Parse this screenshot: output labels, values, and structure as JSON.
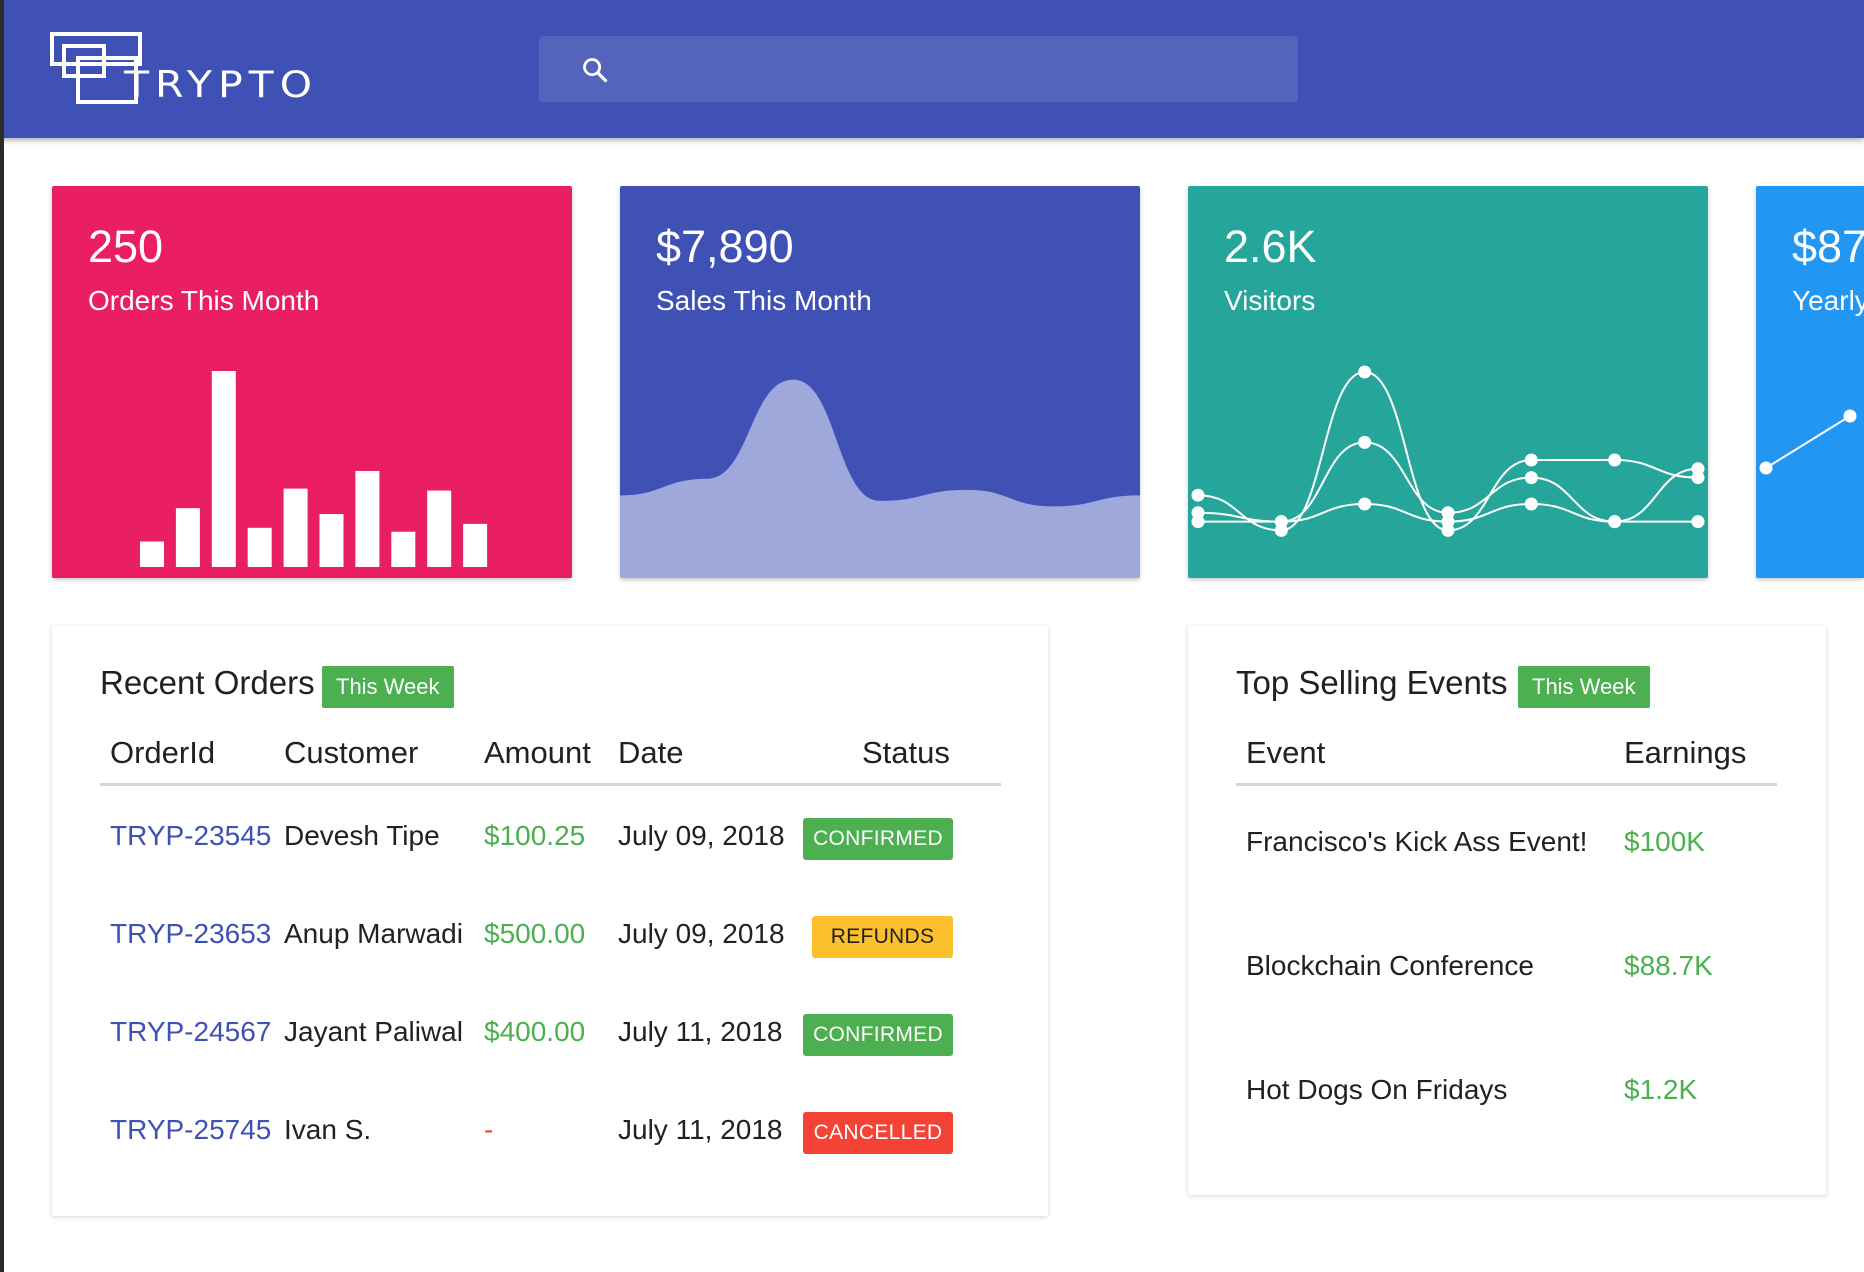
{
  "brand": {
    "name": "TRYPTO"
  },
  "search": {
    "placeholder": ""
  },
  "stats": [
    {
      "value": "250",
      "label": "Orders This Month",
      "color": "#e91e63",
      "chart": {
        "type": "bar",
        "values": [
          1.3,
          3.0,
          10.0,
          2.0,
          4.0,
          2.7,
          4.9,
          1.8,
          3.9,
          2.2
        ]
      }
    },
    {
      "value": "$7,890",
      "label": "Sales This Month",
      "color": "#3f51b5",
      "chart": {
        "type": "area",
        "values": [
          1.5,
          1.8,
          3.6,
          1.4,
          1.6,
          1.3,
          1.5
        ]
      }
    },
    {
      "value": "2.6K",
      "label": "Visitors",
      "color": "#26a69a",
      "chart": {
        "type": "line",
        "series": [
          {
            "values": [
              3,
              1,
              10,
              1,
              5,
              5,
              4
            ]
          },
          {
            "values": [
              1.5,
              1.5,
              6,
              2,
              4,
              1.5,
              4.5
            ]
          },
          {
            "values": [
              2,
              1.5,
              2.5,
              1.5,
              2.5,
              1.5,
              1.5
            ]
          }
        ]
      }
    },
    {
      "value": "$87",
      "label": "Yearly",
      "color": "#2196f3",
      "chart": {
        "type": "line",
        "values": [
          1,
          3
        ]
      }
    }
  ],
  "recent_orders": {
    "title": "Recent Orders",
    "badge": "This Week",
    "headers": [
      "OrderId",
      "Customer",
      "Amount",
      "Date",
      "Status"
    ],
    "rows": [
      {
        "id": "TRYP-23545",
        "customer": "Devesh Tipe",
        "amount": "$100.25",
        "date": "July 09, 2018",
        "status": "CONFIRMED",
        "status_color": "#4caf50",
        "status_text_color": "#ffffff"
      },
      {
        "id": "TRYP-23653",
        "customer": "Anup Marwadi",
        "amount": "$500.00",
        "date": "July 09, 2018",
        "status": "REFUNDS",
        "status_color": "#fbc02d",
        "status_text_color": "#212121"
      },
      {
        "id": "TRYP-24567",
        "customer": "Jayant Paliwal",
        "amount": "$400.00",
        "date": "July 11, 2018",
        "status": "CONFIRMED",
        "status_color": "#4caf50",
        "status_text_color": "#ffffff"
      },
      {
        "id": "TRYP-25745",
        "customer": "Ivan S.",
        "amount": "-",
        "date": "July 11, 2018",
        "status": "CANCELLED",
        "status_color": "#f44336",
        "status_text_color": "#ffffff"
      }
    ]
  },
  "top_events": {
    "title": "Top Selling Events",
    "badge": "This Week",
    "headers": [
      "Event",
      "Earnings"
    ],
    "rows": [
      {
        "event": "Francisco's Kick Ass Event!",
        "earnings": "$100K"
      },
      {
        "event": "Blockchain Conference",
        "earnings": "$88.7K"
      },
      {
        "event": "Hot Dogs On Fridays",
        "earnings": "$1.2K"
      }
    ]
  }
}
